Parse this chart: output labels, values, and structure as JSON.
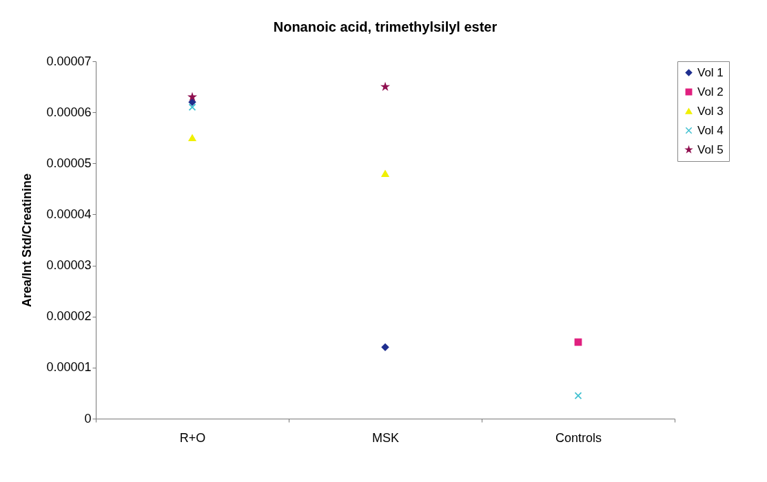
{
  "chart_data": {
    "type": "scatter",
    "title": "Nonanoic acid, trimethylsilyl ester",
    "ylabel": "Area/Int Std/Creatinine",
    "categories": [
      "R+O",
      "MSK",
      "Controls"
    ],
    "series": [
      {
        "name": "Vol 1",
        "color": "#1f2f8f",
        "marker": "diamond",
        "values": [
          6.2e-05,
          1.4e-05,
          null
        ]
      },
      {
        "name": "Vol 2",
        "color": "#e0207f",
        "marker": "square",
        "values": [
          null,
          null,
          1.5e-05
        ]
      },
      {
        "name": "Vol 3",
        "color": "#f0f000",
        "marker": "triangle",
        "values": [
          5.5e-05,
          4.8e-05,
          null
        ]
      },
      {
        "name": "Vol 4",
        "color": "#40c0d0",
        "marker": "cross",
        "values": [
          6.1e-05,
          null,
          4.5e-06
        ]
      },
      {
        "name": "Vol 5",
        "color": "#901050",
        "marker": "star",
        "values": [
          6.3e-05,
          6.5e-05,
          null
        ]
      }
    ],
    "ylim": [
      0,
      7e-05
    ],
    "yticks": [
      0,
      {
        "value": 1e-05,
        "label": "0.00001"
      },
      {
        "value": 2e-05,
        "label": "0.00002"
      },
      {
        "value": 3e-05,
        "label": "0.00003"
      },
      {
        "value": 4e-05,
        "label": "0.00004"
      },
      {
        "value": 5e-05,
        "label": "0.00005"
      },
      {
        "value": 6e-05,
        "label": "0.00006"
      },
      {
        "value": 7e-05,
        "label": "0.00007"
      }
    ],
    "grid": false,
    "legend": "right"
  }
}
